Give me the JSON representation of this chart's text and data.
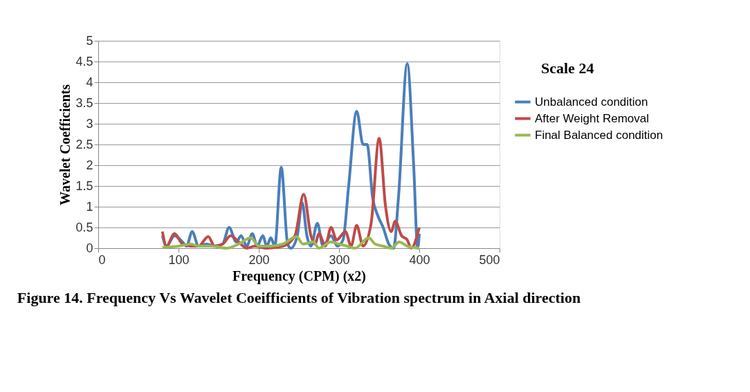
{
  "chart_data": {
    "type": "line",
    "title": "Figure 14. Frequency Vs Wavelet Coeifficients  of Vibration spectrum in Axial direction",
    "xlabel": "Frequency (CPM) (x2)",
    "ylabel": "Wavelet  Coefficients",
    "annotations": [
      "Scale 24"
    ],
    "xlim": [
      0,
      500
    ],
    "xticks": [
      0,
      100,
      200,
      300,
      400,
      500
    ],
    "ylim": [
      0,
      5
    ],
    "yticks": [
      0,
      0.5,
      1,
      1.5,
      2,
      2.5,
      3,
      3.5,
      4,
      4.5,
      5
    ],
    "grid": "y",
    "legend": "right",
    "marker": "none",
    "line_style": "solid",
    "series": [
      {
        "name": "Unbalanced condition",
        "color": "#4a7ebb",
        "x": [
          80,
          85,
          95,
          105,
          110,
          117,
          125,
          135,
          145,
          155,
          163,
          172,
          178,
          185,
          192,
          198,
          205,
          210,
          215,
          220,
          228,
          236,
          240,
          248,
          254,
          260,
          265,
          273,
          280,
          290,
          298,
          305,
          312,
          322,
          330,
          335,
          342,
          348,
          355,
          362,
          368,
          374,
          385,
          393,
          398,
          400
        ],
        "values": [
          0.3,
          0.05,
          0.3,
          0.15,
          0.05,
          0.4,
          0.05,
          0.1,
          0.05,
          0.1,
          0.5,
          0.15,
          0.3,
          0.05,
          0.35,
          0.05,
          0.3,
          0.05,
          0.25,
          0.05,
          1.95,
          0.1,
          0.0,
          0.3,
          1.1,
          0.3,
          0.05,
          0.6,
          0.05,
          0.3,
          0.05,
          0.2,
          1.5,
          3.3,
          2.5,
          2.5,
          1.2,
          0.8,
          0.5,
          0.1,
          0.0,
          1.2,
          4.45,
          2.0,
          0.0,
          0.35
        ]
      },
      {
        "name": "After Weight Removal",
        "color": "#be4b48",
        "x": [
          80,
          85,
          95,
          105,
          115,
          125,
          137,
          145,
          155,
          165,
          175,
          185,
          195,
          210,
          230,
          245,
          256,
          265,
          270,
          275,
          283,
          290,
          297,
          308,
          315,
          322,
          330,
          340,
          350,
          358,
          365,
          370,
          378,
          385,
          390,
          400
        ],
        "values": [
          0.4,
          0.05,
          0.35,
          0.1,
          0.05,
          0.05,
          0.28,
          0.05,
          0.1,
          0.3,
          0.15,
          0.0,
          0.05,
          0.0,
          0.05,
          0.3,
          1.3,
          0.3,
          0.1,
          0.35,
          0.05,
          0.5,
          0.2,
          0.4,
          0.05,
          0.55,
          0.05,
          0.6,
          2.65,
          1.0,
          0.4,
          0.65,
          0.3,
          0.2,
          0.0,
          0.5
        ]
      },
      {
        "name": "Final Balanced condition",
        "color": "#98b954",
        "x": [
          80,
          100,
          115,
          125,
          140,
          160,
          175,
          190,
          200,
          215,
          230,
          247,
          255,
          268,
          275,
          290,
          300,
          310,
          320,
          337,
          345,
          355,
          365,
          375,
          385,
          400
        ],
        "values": [
          0.02,
          0.05,
          0.1,
          0.05,
          0.05,
          0.0,
          0.1,
          0.25,
          0.05,
          0.05,
          0.1,
          0.28,
          0.1,
          0.15,
          0.0,
          0.15,
          0.1,
          0.05,
          0.0,
          0.25,
          0.1,
          0.05,
          0.0,
          0.15,
          0.05,
          0.0
        ]
      }
    ]
  }
}
